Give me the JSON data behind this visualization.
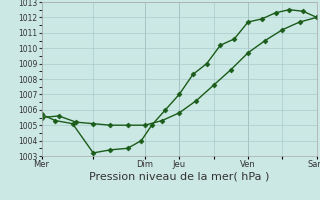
{
  "xlabel": "Pression niveau de la mer( hPa )",
  "xlabel_fontsize": 8,
  "bg_color": "#cce8e4",
  "grid_color": "#aacccc",
  "line_color": "#1a5c1a",
  "ylim": [
    1003,
    1013
  ],
  "yticks": [
    1003,
    1004,
    1005,
    1006,
    1007,
    1008,
    1009,
    1010,
    1011,
    1012,
    1013
  ],
  "xtick_labels": [
    "Mer",
    "",
    "Dim",
    "Jeu",
    "",
    "Ven",
    "",
    "Sam"
  ],
  "xtick_positions": [
    0,
    1.5,
    3,
    4,
    5,
    6,
    7,
    8
  ],
  "line1_x": [
    0,
    0.4,
    0.9,
    1.5,
    2.0,
    2.5,
    2.9,
    3.2,
    3.6,
    4.0,
    4.4,
    4.8,
    5.2,
    5.6,
    6.0,
    6.4,
    6.8,
    7.2,
    7.6,
    8.0
  ],
  "line1_y": [
    1005.7,
    1005.3,
    1005.1,
    1003.2,
    1003.4,
    1003.5,
    1004.0,
    1005.0,
    1006.0,
    1007.0,
    1008.3,
    1009.0,
    1010.2,
    1010.6,
    1011.7,
    1011.9,
    1012.3,
    1012.5,
    1012.4,
    1012.0
  ],
  "line2_x": [
    0,
    0.5,
    1.0,
    1.5,
    2.0,
    2.5,
    3.0,
    3.5,
    4.0,
    4.5,
    5.0,
    5.5,
    6.0,
    6.5,
    7.0,
    7.5,
    8.0
  ],
  "line2_y": [
    1005.5,
    1005.6,
    1005.2,
    1005.1,
    1005.0,
    1005.0,
    1005.0,
    1005.3,
    1005.8,
    1006.6,
    1007.6,
    1008.6,
    1009.7,
    1010.5,
    1011.2,
    1011.7,
    1012.0
  ],
  "marker": "D",
  "marker_size": 2.5,
  "linewidth": 1.0,
  "vlines": [
    0,
    3,
    4,
    6,
    8
  ]
}
